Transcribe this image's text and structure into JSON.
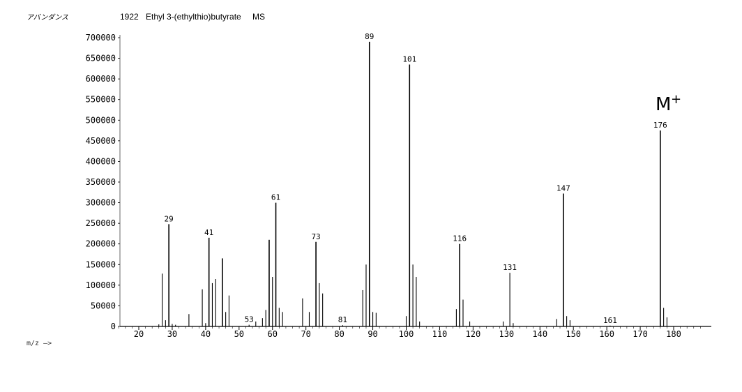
{
  "header": {
    "source_label": "アバンダンス",
    "compound_number": "1922",
    "compound_name": "Ethyl 3-(ethylthio)butyrate",
    "spectrum_type": "MS"
  },
  "x_unit_label": "m/z —>",
  "chart_data": {
    "type": "bar",
    "xlim": [
      10,
      190
    ],
    "ylim": [
      0,
      700000
    ],
    "y_ticks": [
      0,
      50000,
      100000,
      150000,
      200000,
      250000,
      300000,
      350000,
      400000,
      450000,
      500000,
      550000,
      600000,
      650000,
      700000
    ],
    "y_tick_labels": [
      "0",
      "50000",
      "100000",
      "150000",
      "200000",
      "250000",
      "300000",
      "350000",
      "400000",
      "450000",
      "500000",
      "550000",
      "600000",
      "650000",
      "700000"
    ],
    "x_ticks": [
      20,
      30,
      40,
      50,
      60,
      70,
      80,
      90,
      100,
      110,
      120,
      130,
      140,
      150,
      160,
      170,
      180
    ],
    "x_tick_labels": [
      "20",
      "30",
      "40",
      "50",
      "60",
      "70",
      "80",
      "90",
      "100",
      "110",
      "120",
      "130",
      "140",
      "150",
      "160",
      "170",
      "180"
    ],
    "peaks": [
      {
        "mz": 26,
        "intensity": 5000
      },
      {
        "mz": 27,
        "intensity": 128000
      },
      {
        "mz": 28,
        "intensity": 15000
      },
      {
        "mz": 29,
        "intensity": 248000
      },
      {
        "mz": 30,
        "intensity": 6000
      },
      {
        "mz": 31,
        "intensity": 4000
      },
      {
        "mz": 35,
        "intensity": 30000
      },
      {
        "mz": 39,
        "intensity": 90000
      },
      {
        "mz": 40,
        "intensity": 8000
      },
      {
        "mz": 41,
        "intensity": 215000
      },
      {
        "mz": 42,
        "intensity": 105000
      },
      {
        "mz": 43,
        "intensity": 115000
      },
      {
        "mz": 45,
        "intensity": 165000
      },
      {
        "mz": 46,
        "intensity": 35000
      },
      {
        "mz": 47,
        "intensity": 75000
      },
      {
        "mz": 53,
        "intensity": 4000
      },
      {
        "mz": 55,
        "intensity": 12000
      },
      {
        "mz": 57,
        "intensity": 20000
      },
      {
        "mz": 58,
        "intensity": 40000
      },
      {
        "mz": 59,
        "intensity": 210000
      },
      {
        "mz": 60,
        "intensity": 120000
      },
      {
        "mz": 61,
        "intensity": 300000
      },
      {
        "mz": 62,
        "intensity": 45000
      },
      {
        "mz": 63,
        "intensity": 35000
      },
      {
        "mz": 69,
        "intensity": 68000
      },
      {
        "mz": 71,
        "intensity": 35000
      },
      {
        "mz": 73,
        "intensity": 205000
      },
      {
        "mz": 74,
        "intensity": 105000
      },
      {
        "mz": 75,
        "intensity": 80000
      },
      {
        "mz": 81,
        "intensity": 3000
      },
      {
        "mz": 87,
        "intensity": 88000
      },
      {
        "mz": 88,
        "intensity": 150000
      },
      {
        "mz": 89,
        "intensity": 690000
      },
      {
        "mz": 90,
        "intensity": 35000
      },
      {
        "mz": 91,
        "intensity": 33000
      },
      {
        "mz": 100,
        "intensity": 25000
      },
      {
        "mz": 101,
        "intensity": 635000
      },
      {
        "mz": 102,
        "intensity": 150000
      },
      {
        "mz": 103,
        "intensity": 120000
      },
      {
        "mz": 104,
        "intensity": 12000
      },
      {
        "mz": 115,
        "intensity": 42000
      },
      {
        "mz": 116,
        "intensity": 200000
      },
      {
        "mz": 117,
        "intensity": 65000
      },
      {
        "mz": 119,
        "intensity": 12000
      },
      {
        "mz": 129,
        "intensity": 12000
      },
      {
        "mz": 131,
        "intensity": 130000
      },
      {
        "mz": 132,
        "intensity": 8000
      },
      {
        "mz": 145,
        "intensity": 18000
      },
      {
        "mz": 147,
        "intensity": 322000
      },
      {
        "mz": 148,
        "intensity": 25000
      },
      {
        "mz": 149,
        "intensity": 15000
      },
      {
        "mz": 161,
        "intensity": 2000
      },
      {
        "mz": 176,
        "intensity": 475000
      },
      {
        "mz": 177,
        "intensity": 45000
      },
      {
        "mz": 178,
        "intensity": 22000
      }
    ],
    "annotations": [
      {
        "mz": 29,
        "intensity": 248000,
        "text": "29"
      },
      {
        "mz": 41,
        "intensity": 215000,
        "text": "41"
      },
      {
        "mz": 53,
        "intensity": 4000,
        "text": "53"
      },
      {
        "mz": 61,
        "intensity": 300000,
        "text": "61"
      },
      {
        "mz": 73,
        "intensity": 205000,
        "text": "73"
      },
      {
        "mz": 81,
        "intensity": 3000,
        "text": "81"
      },
      {
        "mz": 89,
        "intensity": 690000,
        "text": "89"
      },
      {
        "mz": 101,
        "intensity": 635000,
        "text": "101"
      },
      {
        "mz": 116,
        "intensity": 200000,
        "text": "116"
      },
      {
        "mz": 131,
        "intensity": 130000,
        "text": "131"
      },
      {
        "mz": 147,
        "intensity": 322000,
        "text": "147"
      },
      {
        "mz": 161,
        "intensity": 2000,
        "text": "161"
      },
      {
        "mz": 176,
        "intensity": 475000,
        "text": "176"
      }
    ],
    "molecular_ion_label": "M",
    "molecular_ion_sup": "+",
    "molecular_ion_mz": 176
  }
}
